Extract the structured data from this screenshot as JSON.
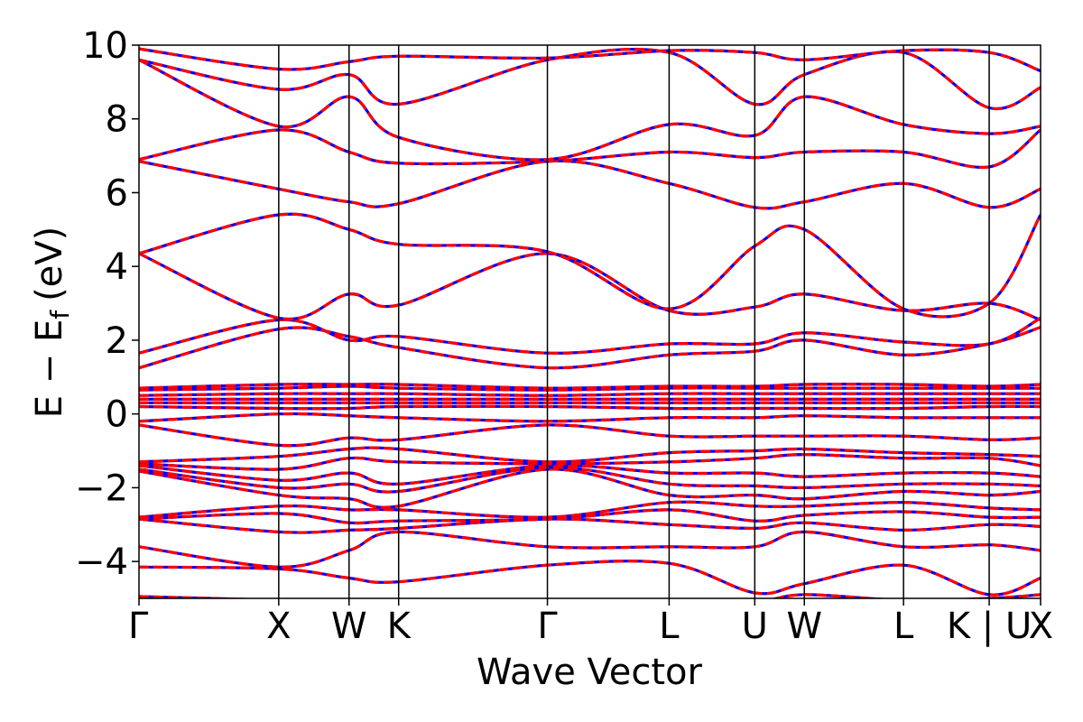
{
  "chart_data": {
    "type": "line",
    "title": "",
    "xlabel": "Wave Vector",
    "ylabel_main": "E − E",
    "ylabel_sub": "f",
    "ylabel_unit": "(eV)",
    "ylim": [
      -5,
      10
    ],
    "yticks": [
      10,
      8,
      6,
      4,
      2,
      0,
      -2,
      -4
    ],
    "ytick_labels": [
      "10",
      "8",
      "6",
      "4",
      "2",
      "0",
      "−2",
      "−4"
    ],
    "xlim": [
      0,
      10
    ],
    "kpoints": [
      {
        "label": "Γ",
        "x": 0.0
      },
      {
        "label": "X",
        "x": 1.55
      },
      {
        "label": "W",
        "x": 2.33
      },
      {
        "label": "K",
        "x": 2.88
      },
      {
        "label": "Γ",
        "x": 4.53
      },
      {
        "label": "L",
        "x": 5.88
      },
      {
        "label": "U",
        "x": 6.83
      },
      {
        "label": "W",
        "x": 7.38
      },
      {
        "label": "L",
        "x": 8.48
      },
      {
        "label": "K | U",
        "x": 9.43
      },
      {
        "label": "X",
        "x": 10.0
      }
    ],
    "series_style": [
      {
        "color": "#0000ff",
        "style": "solid"
      },
      {
        "color": "#ff0000",
        "style": "dashed"
      }
    ],
    "bands": [
      [
        -4.95,
        -5.05,
        -5.1,
        -5.05,
        -5.2,
        -5.15,
        -5.1,
        -4.9,
        -5.05,
        -5.0,
        -4.9
      ],
      [
        -4.15,
        -4.2,
        -4.45,
        -4.55,
        -4.1,
        -4.05,
        -4.85,
        -4.6,
        -4.1,
        -4.9,
        -4.45
      ],
      [
        -3.6,
        -4.15,
        -3.7,
        -3.2,
        -3.6,
        -3.6,
        -3.6,
        -3.2,
        -3.6,
        -3.55,
        -3.7
      ],
      [
        -2.85,
        -3.2,
        -3.15,
        -3.1,
        -2.85,
        -3.0,
        -3.1,
        -2.95,
        -3.15,
        -3.0,
        -3.05
      ],
      [
        -2.85,
        -2.7,
        -2.95,
        -2.9,
        -2.85,
        -2.6,
        -2.9,
        -2.75,
        -2.65,
        -2.8,
        -2.8
      ],
      [
        -2.8,
        -2.5,
        -2.6,
        -2.6,
        -2.8,
        -2.4,
        -2.5,
        -2.5,
        -2.4,
        -2.55,
        -2.6
      ],
      [
        -1.55,
        -2.2,
        -2.3,
        -2.5,
        -1.5,
        -2.2,
        -2.2,
        -2.3,
        -2.1,
        -2.2,
        -2.1
      ],
      [
        -1.5,
        -2.0,
        -1.9,
        -2.1,
        -1.45,
        -1.9,
        -1.95,
        -2.0,
        -1.9,
        -1.9,
        -1.95
      ],
      [
        -1.4,
        -1.8,
        -1.6,
        -1.9,
        -1.4,
        -1.6,
        -1.6,
        -1.7,
        -1.6,
        -1.6,
        -1.7
      ],
      [
        -1.35,
        -1.5,
        -1.2,
        -1.3,
        -1.35,
        -1.3,
        -1.2,
        -1.1,
        -1.2,
        -1.2,
        -1.4
      ],
      [
        -1.3,
        -1.15,
        -0.95,
        -0.95,
        -1.3,
        -1.05,
        -1.0,
        -0.95,
        -1.05,
        -1.1,
        -1.15
      ],
      [
        -0.3,
        -0.85,
        -0.65,
        -0.7,
        -0.3,
        -0.6,
        -0.6,
        -0.6,
        -0.6,
        -0.7,
        -0.65
      ],
      [
        -0.2,
        0.0,
        -0.05,
        -0.1,
        -0.2,
        -0.1,
        -0.1,
        -0.05,
        -0.1,
        -0.1,
        -0.1
      ],
      [
        0.2,
        0.15,
        0.15,
        0.2,
        0.2,
        0.15,
        0.15,
        0.15,
        0.15,
        0.2,
        0.2
      ],
      [
        0.3,
        0.3,
        0.3,
        0.3,
        0.3,
        0.3,
        0.3,
        0.3,
        0.3,
        0.3,
        0.3
      ],
      [
        0.4,
        0.4,
        0.4,
        0.4,
        0.4,
        0.4,
        0.4,
        0.4,
        0.4,
        0.4,
        0.4
      ],
      [
        0.5,
        0.55,
        0.55,
        0.55,
        0.5,
        0.55,
        0.55,
        0.55,
        0.55,
        0.55,
        0.55
      ],
      [
        0.65,
        0.7,
        0.75,
        0.7,
        0.65,
        0.7,
        0.7,
        0.7,
        0.7,
        0.7,
        0.7
      ],
      [
        0.7,
        0.8,
        0.8,
        0.8,
        0.7,
        0.75,
        0.75,
        0.8,
        0.8,
        0.75,
        0.8
      ],
      [
        1.25,
        2.3,
        2.1,
        1.8,
        1.25,
        1.6,
        1.7,
        2.0,
        1.6,
        1.9,
        2.35
      ],
      [
        1.65,
        2.55,
        2.0,
        2.1,
        1.65,
        1.9,
        1.9,
        2.2,
        1.95,
        1.9,
        2.6
      ],
      [
        4.35,
        2.6,
        3.25,
        2.95,
        4.35,
        2.8,
        2.9,
        3.25,
        2.8,
        3.0,
        2.55
      ],
      [
        4.35,
        5.4,
        5.0,
        4.6,
        4.4,
        2.85,
        4.55,
        5.0,
        2.85,
        3.0,
        5.4
      ],
      [
        6.85,
        6.1,
        5.75,
        5.7,
        6.85,
        6.25,
        5.6,
        5.75,
        6.25,
        5.6,
        6.1
      ],
      [
        6.9,
        7.7,
        7.1,
        6.8,
        6.85,
        7.1,
        6.95,
        7.1,
        7.1,
        6.7,
        7.7
      ],
      [
        9.6,
        7.8,
        8.6,
        7.5,
        6.9,
        7.85,
        7.55,
        8.6,
        7.85,
        7.6,
        7.8
      ],
      [
        9.6,
        8.8,
        9.2,
        8.4,
        9.6,
        9.8,
        8.4,
        9.2,
        9.8,
        8.3,
        8.85
      ],
      [
        9.9,
        9.35,
        9.55,
        9.7,
        9.65,
        9.85,
        9.8,
        9.6,
        9.85,
        9.8,
        9.3
      ]
    ]
  }
}
